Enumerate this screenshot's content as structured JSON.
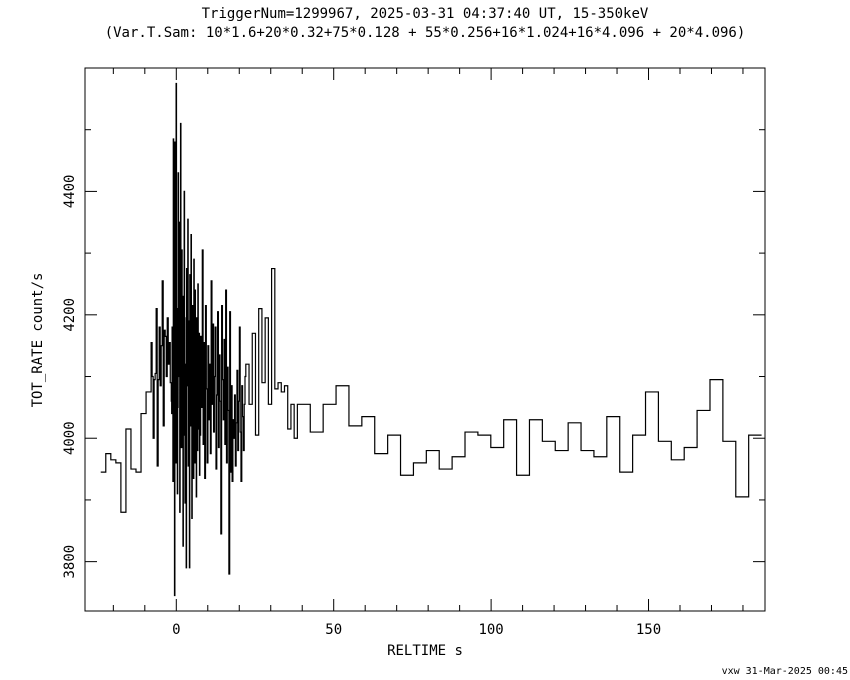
{
  "chart_data": {
    "type": "line",
    "style": "step",
    "title": "TriggerNum=1299967, 2025-03-31 04:37:40 UT, 15-350keV",
    "subtitle": "(Var.T.Sam: 10*1.6+20*0.32+75*0.128  +  55*0.256+16*1.024+16*4.096  +  20*4.096)",
    "xlabel": "RELTIME  s",
    "ylabel": "TOT_RATE  count/s",
    "footer": "vxw 31-Mar-2025 00:45",
    "xlim": [
      -29,
      187
    ],
    "ylim": [
      3720,
      4600
    ],
    "x_ticks": [
      0,
      50,
      100,
      150
    ],
    "x_tick_labels": [
      "0",
      "50",
      "100",
      "150"
    ],
    "y_ticks": [
      3800,
      4000,
      4200,
      4400
    ],
    "y_tick_labels": [
      "3800",
      "4000",
      "4200",
      "4400"
    ],
    "line_color": "#000000",
    "grid": false,
    "series": [
      {
        "segments": [
          {
            "x0": -24.0,
            "dt": 1.6,
            "values": [
              3945,
              3975,
              3965,
              3960,
              3880,
              4015,
              3950,
              3945,
              4040,
              4075
            ]
          },
          {
            "x0": -8.0,
            "dt": 0.32,
            "values": [
              4155,
              4100,
              4000,
              4095,
              4105,
              4210,
              3955,
              4095,
              4180,
              4085,
              4150,
              4255,
              4020,
              4175,
              4165,
              4100,
              4195,
              4120,
              4155,
              4090
            ]
          },
          {
            "x0": -1.6,
            "dt": 0.128,
            "values": [
              4060,
              4040,
              4180,
              4070,
              3930,
              4485,
              3970,
              4120,
              3745,
              4480,
              4110,
              3960,
              4575,
              4015,
              4210,
              3910,
              4050,
              4430,
              4240,
              4100,
              4350,
              3880,
              4145,
              4510,
              4090,
              3985,
              4305,
              4130,
              4070,
              3825,
              4230,
              4005,
              4400,
              4195,
              3895,
              4120,
              4040,
              3790,
              4275,
              4150,
              4085,
              4355,
              3955,
              4080,
              4190,
              3790,
              4265,
              4105,
              4020,
              4330,
              4140,
              3870,
              4215,
              4060,
              4185,
              3935,
              4290,
              4120,
              3960,
              4240,
              4080,
              4045,
              3905,
              4195,
              4110,
              3980,
              4250,
              4070,
              4015,
              4170,
              3940,
              4125,
              4005,
              4165,
              4090
            ]
          },
          {
            "x0": 8.0,
            "dt": 0.256,
            "values": [
              4050,
              4305,
              3990,
              4155,
              3935,
              4215,
              4080,
              3960,
              4150,
              4030,
              4120,
              3975,
              4255,
              4055,
              4185,
              4010,
              4100,
              4180,
              3950,
              4070,
              4205,
              3985,
              4135,
              4060,
              3845,
              4215,
              4095,
              4030,
              4160,
              3990,
              4240,
              3960,
              4115,
              4045,
              3780,
              4205,
              3945,
              4085,
              3930,
              4030,
              4000,
              4070,
              3955,
              4025,
              4110,
              3980,
              4060,
              4180,
              4010,
              3930,
              4085,
              4035,
              3980,
              4055,
              4100
            ]
          },
          {
            "x0": 22.08,
            "dt": 1.024,
            "values": [
              4120,
              4055,
              4170,
              4005,
              4210,
              4090,
              4195,
              4055,
              4275,
              4080,
              4090,
              4075,
              4085,
              4015,
              4055,
              4000
            ]
          },
          {
            "x0": 38.46,
            "dt": 4.096,
            "values": [
              4055,
              4010,
              4055,
              4085,
              4020,
              4035,
              3975,
              4005,
              3940,
              3960,
              3980,
              3950,
              3970,
              4010,
              4005,
              3985
            ]
          },
          {
            "x0": 103.99,
            "dt": 4.096,
            "values": [
              4030,
              3940,
              4030,
              3995,
              3980,
              4025,
              3980,
              3970,
              4035,
              3945,
              4005,
              4075,
              3995,
              3965,
              3985,
              4045,
              4095,
              3995,
              3905,
              4005
            ]
          }
        ]
      }
    ]
  }
}
